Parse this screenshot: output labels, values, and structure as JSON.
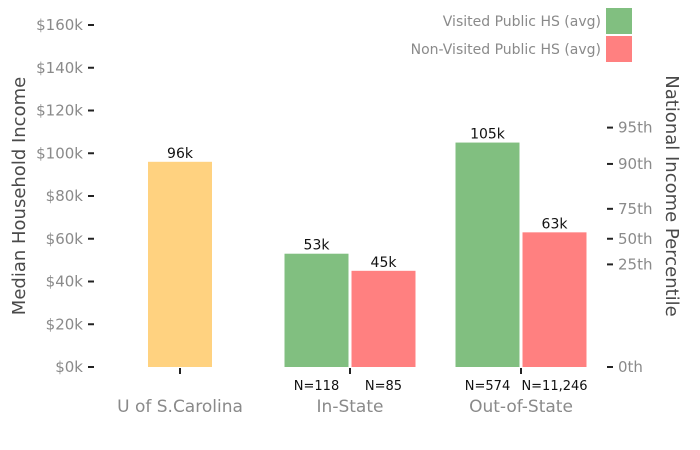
{
  "chart_data": {
    "type": "bar",
    "ylabel": "Median Household Income",
    "y2label": "National Income Percentile",
    "ylim": [
      0,
      160000
    ],
    "y_ticks": [
      {
        "value": 0,
        "label": "$0k"
      },
      {
        "value": 20000,
        "label": "$20k"
      },
      {
        "value": 40000,
        "label": "$40k"
      },
      {
        "value": 60000,
        "label": "$60k"
      },
      {
        "value": 80000,
        "label": "$80k"
      },
      {
        "value": 100000,
        "label": "$100k"
      },
      {
        "value": 120000,
        "label": "$120k"
      },
      {
        "value": 140000,
        "label": "$140k"
      },
      {
        "value": 160000,
        "label": "$160k"
      }
    ],
    "percentile_ticks": [
      {
        "value": 0,
        "label": "0th"
      },
      {
        "value": 48000,
        "label": "25th"
      },
      {
        "value": 60000,
        "label": "50th"
      },
      {
        "value": 74000,
        "label": "75th"
      },
      {
        "value": 95000,
        "label": "90th"
      },
      {
        "value": 112000,
        "label": "95th"
      }
    ],
    "legend": {
      "position": "top-right",
      "entries": [
        {
          "label": "Visited Public HS (avg)",
          "color": "#81bf80"
        },
        {
          "label": "Non-Visited Public HS (avg)",
          "color": "#ff8080"
        }
      ]
    },
    "groups": [
      {
        "label": "U of S.Carolina",
        "bars": [
          {
            "value": 96000,
            "label": "96k",
            "color": "#ffd280",
            "n": ""
          }
        ]
      },
      {
        "label": "In-State",
        "bars": [
          {
            "value": 53000,
            "label": "53k",
            "color": "#81bf80",
            "n": "N=118"
          },
          {
            "value": 45000,
            "label": "45k",
            "color": "#ff8080",
            "n": "N=85"
          }
        ]
      },
      {
        "label": "Out-of-State",
        "bars": [
          {
            "value": 105000,
            "label": "105k",
            "color": "#81bf80",
            "n": "N=574"
          },
          {
            "value": 63000,
            "label": "63k",
            "color": "#ff8080",
            "n": "N=11,246"
          }
        ]
      }
    ],
    "grid": false
  }
}
